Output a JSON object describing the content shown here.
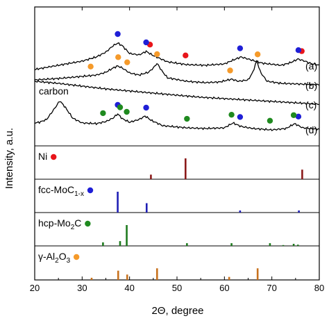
{
  "chart_data": {
    "type": "line",
    "title": "",
    "xlabel": "2Θ, degree",
    "ylabel": "Intensity, a.u.",
    "xlim": [
      20,
      80
    ],
    "x_ticks": [
      20,
      30,
      40,
      50,
      60,
      70,
      80
    ],
    "y_ticks_shown": false,
    "grid": false,
    "top_panel": {
      "series": [
        {
          "label": "(a)",
          "color": "#000000",
          "x": [
            20,
            25,
            30,
            33,
            35,
            36.5,
            37.5,
            38.5,
            40,
            42,
            43.5,
            45,
            48,
            52,
            56,
            60,
            62,
            63.5,
            65,
            68,
            72,
            74,
            75.5,
            77,
            78,
            80
          ],
          "y": [
            100,
            94,
            88,
            82,
            75,
            66,
            62,
            66,
            77,
            79,
            74,
            80,
            89,
            93,
            94,
            92,
            86,
            82,
            85,
            91,
            94,
            90,
            85,
            88,
            91,
            94
          ]
        },
        {
          "label": "(b)",
          "color": "#000000",
          "x": [
            20,
            25,
            30,
            33,
            35,
            36.5,
            37.5,
            38.5,
            40,
            42,
            44,
            45,
            45.8,
            46.8,
            48,
            52,
            56,
            59,
            61.5,
            63,
            65,
            66,
            66.8,
            67.6,
            69,
            72,
            76,
            80
          ],
          "y": [
            115,
            113,
            110,
            108,
            104,
            98,
            95,
            98,
            105,
            108,
            104,
            98,
            91,
            102,
            112,
            117,
            119,
            118,
            114,
            117,
            115,
            104,
            87,
            104,
            117,
            120,
            121,
            122
          ]
        },
        {
          "label": "(c)",
          "color": "#000000",
          "x": [
            20,
            25,
            30,
            35,
            40,
            45,
            50,
            55,
            60,
            65,
            70,
            75,
            80
          ],
          "y": [
            117,
            120,
            124,
            128,
            131,
            134,
            137,
            140,
            142,
            144,
            146,
            148,
            150
          ]
        },
        {
          "label": "(d)",
          "color": "#000000",
          "x": [
            20,
            21,
            22.5,
            24,
            25.3,
            26.5,
            28,
            30,
            33,
            35,
            36.5,
            37.5,
            38.5,
            40,
            42,
            43.3,
            44.5,
            47,
            52,
            56,
            60,
            61.8,
            63.5,
            66,
            70,
            73,
            74.8,
            76.5,
            80
          ],
          "y": [
            177,
            176,
            172,
            158,
            145,
            155,
            170,
            177,
            178,
            175,
            170,
            164,
            171,
            176,
            172,
            167,
            173,
            181,
            184,
            185,
            184,
            177,
            182,
            185,
            187,
            185,
            178,
            184,
            186
          ]
        }
      ],
      "markers": [
        {
          "series": "(a)",
          "phase": "Ni",
          "x": [
            44.3,
            51.8,
            76.3
          ]
        },
        {
          "series": "(a)",
          "phase": "fcc-MoC1-x",
          "x": [
            37.5,
            43.5,
            63.3,
            75.6
          ]
        },
        {
          "series": "(b)",
          "phase": "γ-Al2O3",
          "x": [
            31.8,
            37.6,
            39.5,
            45.8,
            61.2,
            67.0
          ]
        },
        {
          "series": "(d)",
          "phase": "fcc-MoC1-x",
          "x": [
            37.5,
            43.5,
            63.3,
            75.6
          ]
        },
        {
          "series": "(d)",
          "phase": "hcp-Mo2C",
          "x": [
            34.4,
            38.0,
            39.4,
            52.1,
            61.5,
            69.6,
            74.6
          ]
        }
      ],
      "annotations": [
        "carbon"
      ]
    },
    "reference_panels": [
      {
        "label": "Ni",
        "marker_color": "#e8151b",
        "bar_color": "#8b1a1a",
        "peaks": [
          {
            "x": 44.5,
            "rel": 0.22
          },
          {
            "x": 51.8,
            "rel": 1.0
          },
          {
            "x": 76.4,
            "rel": 0.46
          }
        ]
      },
      {
        "label": "fcc-MoC",
        "label_sub": "1-x",
        "marker_color": "#1f1fd6",
        "bar_color": "#1f1fb5",
        "peaks": [
          {
            "x": 37.5,
            "rel": 1.0
          },
          {
            "x": 43.6,
            "rel": 0.45
          },
          {
            "x": 63.3,
            "rel": 0.1
          },
          {
            "x": 75.7,
            "rel": 0.1
          }
        ]
      },
      {
        "label": "hcp-Mo",
        "label_sub": "2",
        "label_suffix": "C",
        "marker_color": "#1f8a1f",
        "bar_color": "#1f7a1f",
        "peaks": [
          {
            "x": 34.4,
            "rel": 0.17
          },
          {
            "x": 38.0,
            "rel": 0.23
          },
          {
            "x": 39.4,
            "rel": 1.0
          },
          {
            "x": 52.1,
            "rel": 0.13
          },
          {
            "x": 61.5,
            "rel": 0.13
          },
          {
            "x": 69.6,
            "rel": 0.13
          },
          {
            "x": 72.4,
            "rel": 0.04
          },
          {
            "x": 74.6,
            "rel": 0.1
          },
          {
            "x": 75.5,
            "rel": 0.06
          }
        ]
      },
      {
        "label": "γ-Al",
        "label_sub": "2",
        "label_suffix": "O",
        "label_sub2": "3",
        "marker_color": "#f59a2a",
        "bar_color": "#c8721e",
        "peaks": [
          {
            "x": 32.0,
            "rel": 0.1
          },
          {
            "x": 37.6,
            "rel": 0.43
          },
          {
            "x": 39.5,
            "rel": 0.25
          },
          {
            "x": 45.8,
            "rel": 0.54
          },
          {
            "x": 61.0,
            "rel": 0.14
          },
          {
            "x": 67.0,
            "rel": 0.54
          }
        ]
      }
    ]
  }
}
